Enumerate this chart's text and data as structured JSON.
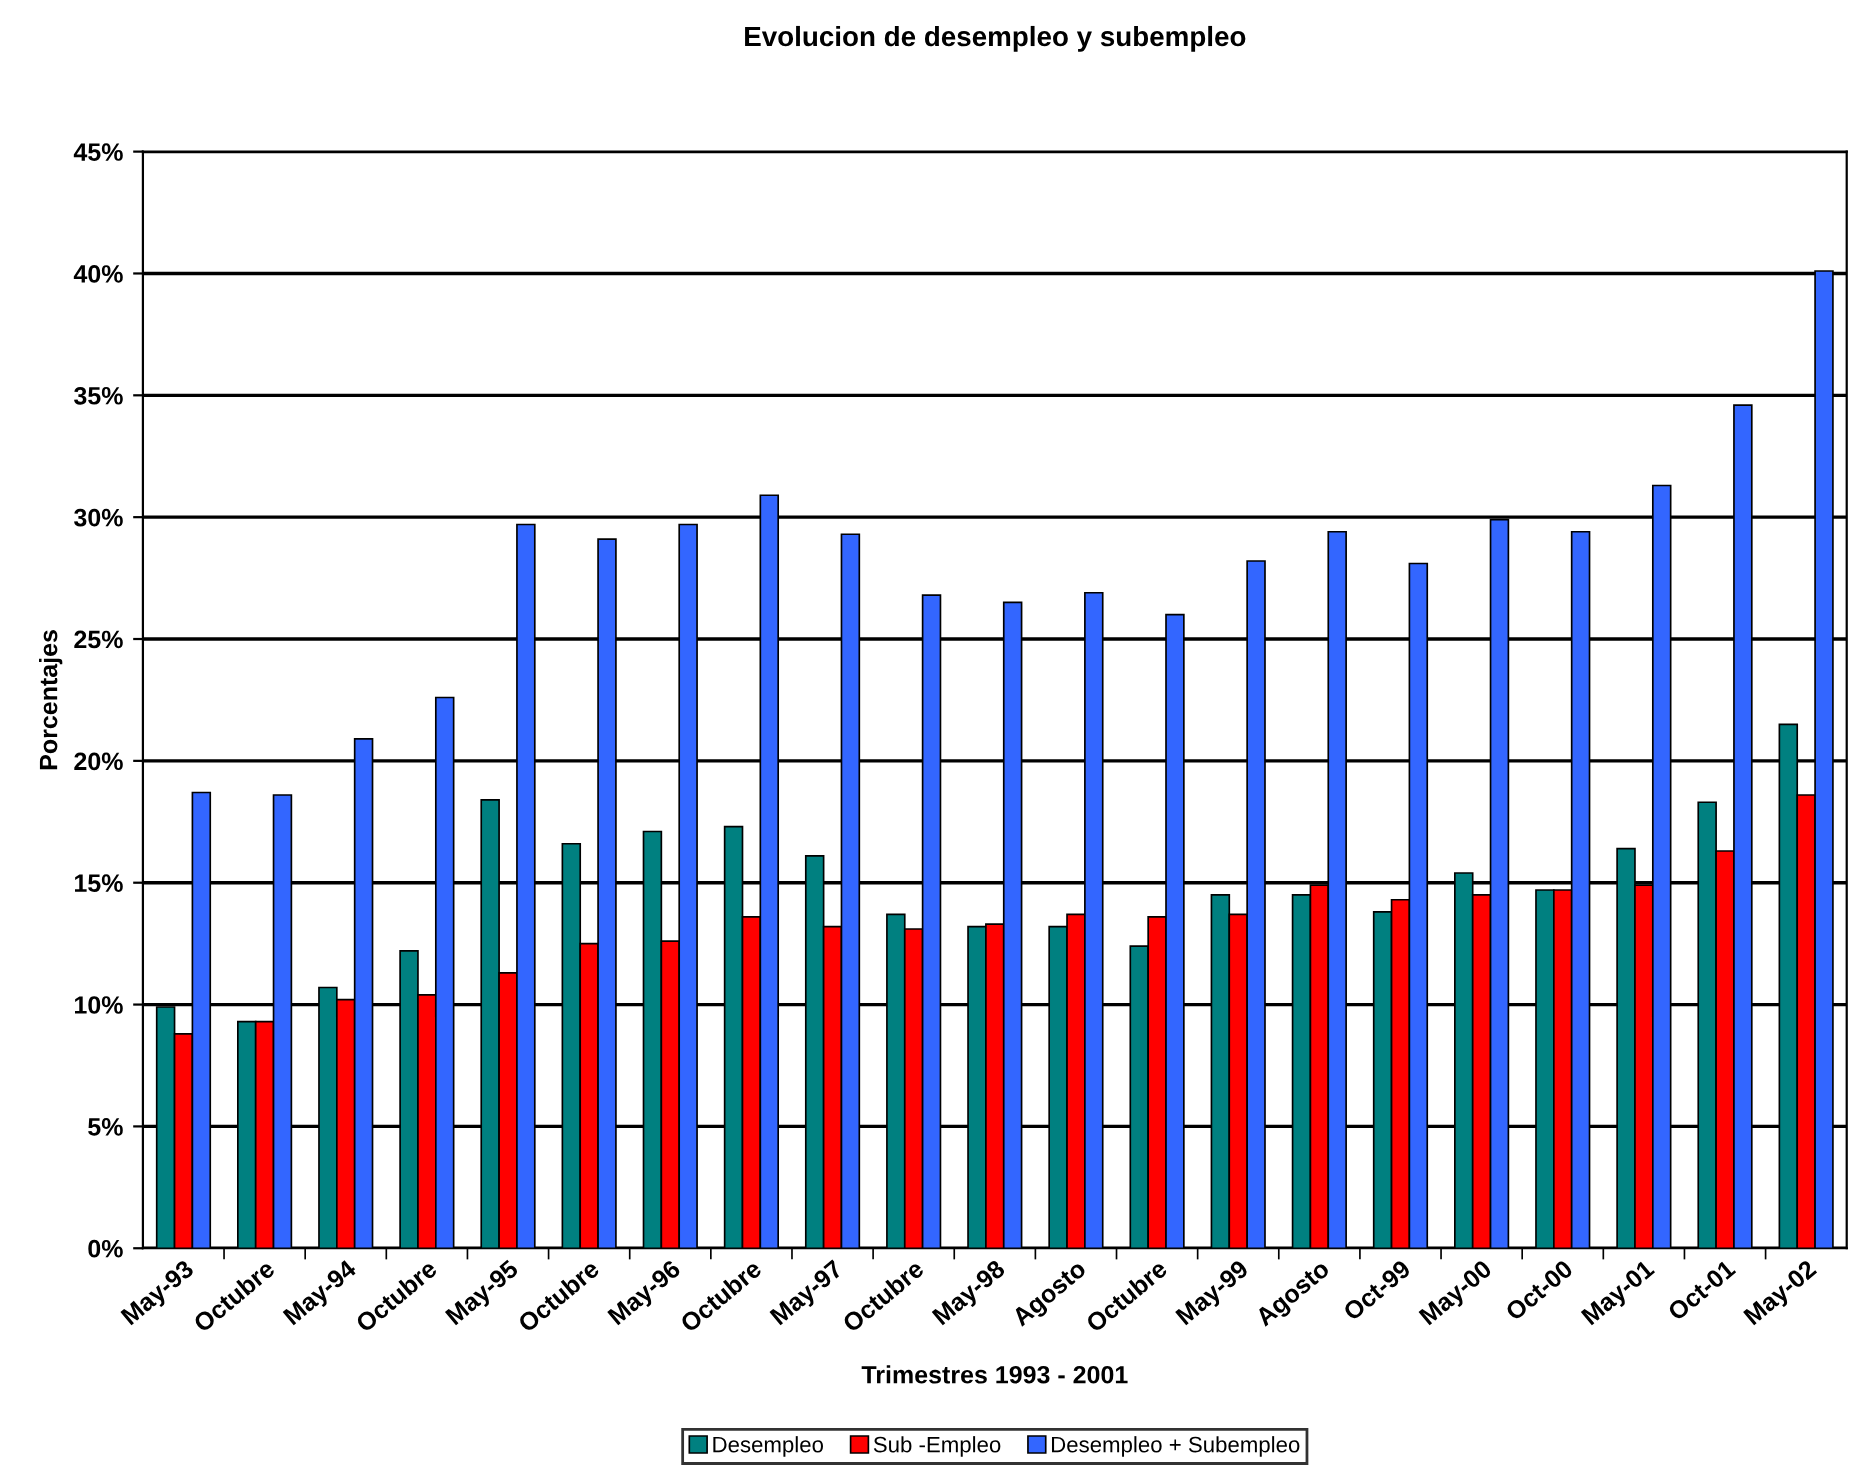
{
  "chart_data": {
    "type": "bar",
    "title": "Evolucion de desempleo y subempleo",
    "xlabel": "Trimestres 1993 - 2001",
    "ylabel": "Porcentajes",
    "categories": [
      "May-93",
      "Octubre",
      "May-94",
      "Octubre",
      "May-95",
      "Octubre",
      "May-96",
      "Octubre",
      "May-97",
      "Octubre",
      "May-98",
      "Agosto",
      "Octubre",
      "May-99",
      "Agosto",
      "Oct-99",
      "May-00",
      "Oct-00",
      "May-01",
      "Oct-01",
      "May-02"
    ],
    "series": [
      {
        "name": "Desempleo",
        "color": "#008080",
        "values": [
          9.9,
          9.3,
          10.7,
          12.2,
          18.4,
          16.6,
          17.1,
          17.3,
          16.1,
          13.7,
          13.2,
          13.2,
          12.4,
          14.5,
          14.5,
          13.8,
          15.4,
          14.7,
          16.4,
          18.3,
          21.5
        ]
      },
      {
        "name": "Sub -Empleo",
        "color": "#ff0000",
        "values": [
          8.8,
          9.3,
          10.2,
          10.4,
          11.3,
          12.5,
          12.6,
          13.6,
          13.2,
          13.1,
          13.3,
          13.7,
          13.6,
          13.7,
          14.9,
          14.3,
          14.5,
          14.7,
          14.9,
          16.3,
          18.6
        ]
      },
      {
        "name": "Desempleo + Subempleo",
        "color": "#3366ff",
        "values": [
          18.7,
          18.6,
          20.9,
          22.6,
          29.7,
          29.1,
          29.7,
          30.9,
          29.3,
          26.8,
          26.5,
          26.9,
          26.0,
          28.2,
          29.4,
          28.1,
          29.9,
          29.4,
          31.3,
          34.6,
          40.1
        ]
      }
    ],
    "ylim": [
      0,
      45
    ],
    "yticks": [
      {
        "value": 0,
        "label": "0%"
      },
      {
        "value": 5,
        "label": "5%"
      },
      {
        "value": 10,
        "label": "10%"
      },
      {
        "value": 15,
        "label": "15%"
      },
      {
        "value": 20,
        "label": "20%"
      },
      {
        "value": 25,
        "label": "25%"
      },
      {
        "value": 30,
        "label": "30%"
      },
      {
        "value": 35,
        "label": "35%"
      },
      {
        "value": 40,
        "label": "40%"
      },
      {
        "value": 45,
        "label": "45%"
      }
    ],
    "grid": "y",
    "legend": "bottom"
  }
}
